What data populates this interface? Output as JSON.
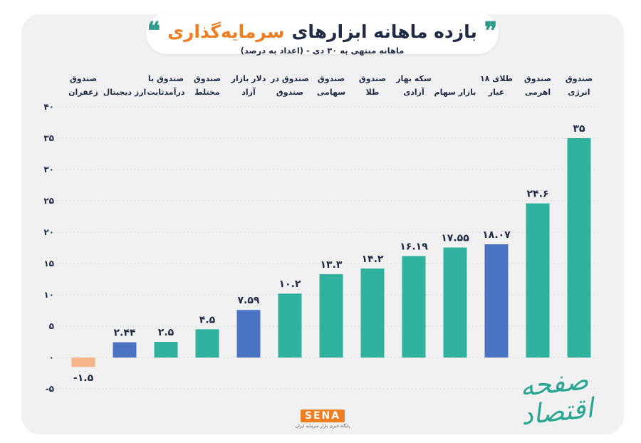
{
  "header": {
    "title_part1": "بازده ماهانه ابزارهای",
    "title_part2": "سرمایه‌گذاری",
    "quote_right": "❞",
    "quote_left": "❝",
    "subtitle": "ماهانه منتهی به ۳۰ دی - (اعداد به درصد)"
  },
  "brand": {
    "sena_logo": "SENA",
    "sena_tagline": "پایگاه خبری بازار سرمایه ایران",
    "signature": "صفحه اقتصاد"
  },
  "colors": {
    "teal": "#2fb19d",
    "blue": "#4a73c4",
    "negative": "#f5b48a",
    "accent": "#ef7d22"
  },
  "chart_data": {
    "type": "bar",
    "title": "بازده ماهانه ابزارهای سرمایه‌گذاری",
    "subtitle": "ماهانه منتهی به ۳۰ دی - (اعداد به درصد)",
    "xlabel": "",
    "ylabel": "",
    "ylim": [
      -5,
      40
    ],
    "yticks": [
      -5,
      0,
      5,
      10,
      15,
      20,
      25,
      30,
      35,
      40
    ],
    "ytick_labels": [
      "-۵",
      "۰",
      "۵",
      "۱۰",
      "۱۵",
      "۲۰",
      "۲۵",
      "۳۰",
      "۳۵",
      "۴۰"
    ],
    "grid": true,
    "categories": [
      [
        "صندوق",
        "زعفران"
      ],
      [
        "ارز دیجیتال"
      ],
      [
        "صندوق با",
        "درآمدثابت"
      ],
      [
        "صندوق",
        "مختلط"
      ],
      [
        "دلار بازار",
        "آزاد"
      ],
      [
        "صندوق در",
        "صندوق"
      ],
      [
        "صندوق",
        "سهامی"
      ],
      [
        "صندوق",
        "طلا"
      ],
      [
        "سکه بهار",
        "آزادی"
      ],
      [
        "بازار سهام"
      ],
      [
        "طلای ۱۸",
        "عیار"
      ],
      [
        "صندوق",
        "اهرمی"
      ],
      [
        "صندوق",
        "انرژی"
      ]
    ],
    "values": [
      -1.5,
      2.44,
      2.5,
      4.5,
      7.59,
      10.2,
      13.3,
      14.2,
      16.19,
      17.55,
      18.07,
      24.6,
      35
    ],
    "value_labels": [
      "-۱.۵",
      "۲.۴۴",
      "۲.۵",
      "۴.۵",
      "۷.۵۹",
      "۱۰.۲",
      "۱۳.۳",
      "۱۴.۲",
      "۱۶.۱۹",
      "۱۷.۵۵",
      "۱۸.۰۷",
      "۲۴.۶",
      "۳۵"
    ],
    "bar_colors": [
      "#f5b48a",
      "#4a73c4",
      "#2fb19d",
      "#2fb19d",
      "#4a73c4",
      "#2fb19d",
      "#2fb19d",
      "#2fb19d",
      "#2fb19d",
      "#2fb19d",
      "#4a73c4",
      "#2fb19d",
      "#2fb19d"
    ]
  }
}
